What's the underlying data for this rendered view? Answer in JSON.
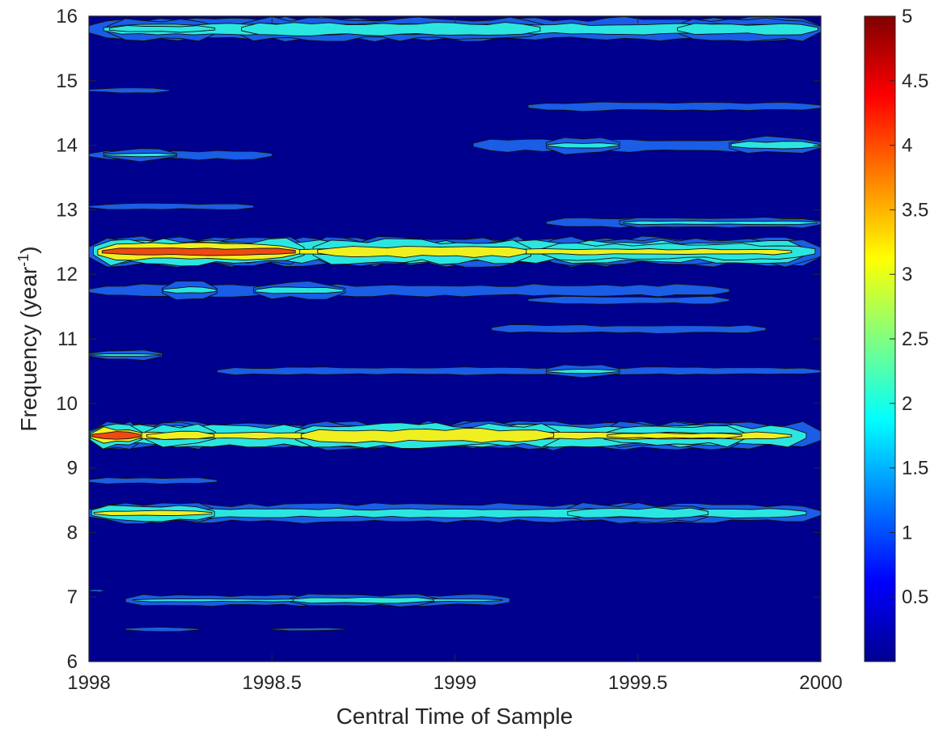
{
  "chart_data": {
    "type": "heatmap",
    "subtype": "filled-contour",
    "xlabel": "Central Time of Sample",
    "ylabel": {
      "main": "Frequency (year",
      "sup": "-1",
      "close": ")"
    },
    "xlim": [
      1998,
      2000
    ],
    "ylim": [
      6,
      16
    ],
    "xticks": [
      1998,
      1998.5,
      1999,
      1999.5,
      2000
    ],
    "xtick_labels": [
      "1998",
      "1998.5",
      "1999",
      "1999.5",
      "2000"
    ],
    "yticks": [
      6,
      7,
      8,
      9,
      10,
      11,
      12,
      13,
      14,
      15,
      16
    ],
    "ytick_labels": [
      "6",
      "7",
      "8",
      "9",
      "10",
      "11",
      "12",
      "13",
      "14",
      "15",
      "16"
    ],
    "colorbar": {
      "colormap": "jet",
      "clim": [
        0,
        5
      ],
      "ticks": [
        0.5,
        1,
        1.5,
        2,
        2.5,
        3,
        3.5,
        4,
        4.5,
        5
      ],
      "tick_labels": [
        "0.5",
        "1",
        "1.5",
        "2",
        "2.5",
        "3",
        "3.5",
        "4",
        "4.5",
        "5"
      ],
      "colors": [
        "#00008F",
        "#0000FF",
        "#0080FF",
        "#00FFFF",
        "#80FF80",
        "#FFFF00",
        "#FF8000",
        "#FF0000",
        "#800000"
      ]
    },
    "contour_levels": [
      {
        "level": 0.5,
        "color": "#00008F"
      },
      {
        "level": 1.0,
        "color": "#1A5DE6"
      },
      {
        "level": 1.5,
        "color": "#2BE6E0"
      },
      {
        "level": 2.5,
        "color": "#F0F020"
      },
      {
        "level": 3.5,
        "color": "#F04A10"
      }
    ],
    "bands": [
      {
        "y": 15.8,
        "x0": 1998.0,
        "x1": 2000.0,
        "thick": 0.34,
        "peak": 1.8,
        "hot": [
          {
            "x0": 1998.05,
            "x1": 1998.35,
            "peak": 1.6
          },
          {
            "x0": 1998.4,
            "x1": 1999.25,
            "peak": 1.9
          },
          {
            "x0": 1999.6,
            "x1": 2000.0,
            "peak": 1.8
          }
        ]
      },
      {
        "y": 14.6,
        "x0": 1999.2,
        "x1": 2000.0,
        "thick": 0.26,
        "peak": 1.1
      },
      {
        "y": 14.85,
        "x0": 1998.0,
        "x1": 1998.22,
        "thick": 0.14,
        "peak": 1.1
      },
      {
        "y": 14.0,
        "x0": 1999.05,
        "x1": 2000.0,
        "thick": 0.28,
        "peak": 1.2,
        "hot": [
          {
            "x0": 1999.25,
            "x1": 1999.45,
            "peak": 1.6
          },
          {
            "x0": 1999.75,
            "x1": 2000.0,
            "peak": 1.7
          }
        ]
      },
      {
        "y": 13.85,
        "x0": 1998.0,
        "x1": 1998.5,
        "thick": 0.2,
        "peak": 1.2,
        "hot": [
          {
            "x0": 1998.04,
            "x1": 1998.24,
            "peak": 1.6
          }
        ]
      },
      {
        "y": 13.05,
        "x0": 1998.0,
        "x1": 1998.45,
        "thick": 0.18,
        "peak": 1.1
      },
      {
        "y": 12.8,
        "x0": 1999.25,
        "x1": 2000.0,
        "thick": 0.18,
        "peak": 1.3,
        "hot": [
          {
            "x0": 1999.45,
            "x1": 2000.0,
            "peak": 1.6
          }
        ]
      },
      {
        "y": 12.35,
        "x0": 1998.0,
        "x1": 2000.0,
        "thick": 0.4,
        "peak": 2.6,
        "hot": [
          {
            "x0": 1998.0,
            "x1": 1998.6,
            "peak": 3.8
          },
          {
            "x0": 1998.6,
            "x1": 1999.22,
            "peak": 3.0
          },
          {
            "x0": 1999.22,
            "x1": 2000.0,
            "peak": 2.0
          }
        ]
      },
      {
        "y": 11.75,
        "x0": 1998.0,
        "x1": 1999.75,
        "thick": 0.26,
        "peak": 1.2,
        "hot": [
          {
            "x0": 1998.2,
            "x1": 1998.35,
            "peak": 1.7
          },
          {
            "x0": 1998.45,
            "x1": 1998.7,
            "peak": 1.7
          }
        ]
      },
      {
        "y": 11.6,
        "x0": 1999.2,
        "x1": 1999.75,
        "thick": 0.22,
        "peak": 1.1
      },
      {
        "y": 11.15,
        "x0": 1999.1,
        "x1": 1999.85,
        "thick": 0.18,
        "peak": 1.2
      },
      {
        "y": 10.75,
        "x0": 1998.0,
        "x1": 1998.2,
        "thick": 0.16,
        "peak": 1.5
      },
      {
        "y": 10.5,
        "x0": 1998.35,
        "x1": 2000.0,
        "thick": 0.22,
        "peak": 1.1,
        "hot": [
          {
            "x0": 1999.25,
            "x1": 1999.45,
            "peak": 1.6
          }
        ]
      },
      {
        "y": 9.5,
        "x0": 1998.0,
        "x1": 2000.0,
        "thick": 0.38,
        "peak": 2.7,
        "hot": [
          {
            "x0": 1998.0,
            "x1": 1998.15,
            "peak": 3.9
          },
          {
            "x0": 1998.15,
            "x1": 1998.35,
            "peak": 2.8
          },
          {
            "x0": 1998.55,
            "x1": 1999.3,
            "peak": 3.4
          },
          {
            "x0": 1999.4,
            "x1": 1999.8,
            "peak": 2.6
          }
        ]
      },
      {
        "y": 8.8,
        "x0": 1998.0,
        "x1": 1998.35,
        "thick": 0.14,
        "peak": 1.2
      },
      {
        "y": 8.3,
        "x0": 1998.0,
        "x1": 2000.0,
        "thick": 0.28,
        "peak": 1.8,
        "hot": [
          {
            "x0": 1998.0,
            "x1": 1998.35,
            "peak": 2.7
          },
          {
            "x0": 1999.3,
            "x1": 1999.7,
            "peak": 1.9
          }
        ]
      },
      {
        "y": 6.95,
        "x0": 1998.1,
        "x1": 1999.15,
        "thick": 0.18,
        "peak": 1.5,
        "hot": [
          {
            "x0": 1998.55,
            "x1": 1998.95,
            "peak": 1.8
          }
        ]
      },
      {
        "y": 6.5,
        "x0": 1998.1,
        "x1": 1998.3,
        "thick": 0.12,
        "peak": 1.1
      },
      {
        "y": 6.5,
        "x0": 1998.5,
        "x1": 1998.7,
        "thick": 0.1,
        "peak": 1.05
      },
      {
        "y": 7.1,
        "x0": 1998.0,
        "x1": 1998.04,
        "thick": 0.1,
        "peak": 1.05
      }
    ]
  }
}
